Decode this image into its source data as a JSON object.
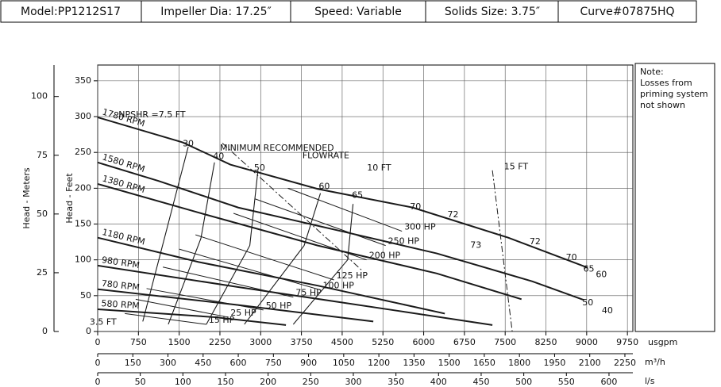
{
  "header": {
    "cells": [
      "Model:PP1212S17",
      "Impeller Dia: 17.25″",
      "Speed: Variable",
      "Solids Size: 3.75″",
      "Curve#07875HQ"
    ]
  },
  "note": {
    "lines": [
      "Note:",
      "Losses from",
      "priming system",
      "not shown"
    ]
  },
  "chart_data": {
    "type": "line",
    "color": "#1a1a1a",
    "grid": true,
    "ylabel": "Head - Feet",
    "y2label": "Head - Meters",
    "xlabel": "usgpm",
    "xlim": [
      0,
      9850
    ],
    "xticks": [
      0,
      750,
      1500,
      2250,
      3000,
      3750,
      4500,
      5250,
      6000,
      6750,
      7500,
      8250,
      9000,
      9750
    ],
    "ylim": [
      0,
      372
    ],
    "yticks": [
      0,
      50,
      100,
      150,
      200,
      250,
      300,
      350
    ],
    "y2lim": [
      0,
      113.4
    ],
    "y2ticks": [
      0,
      25,
      50,
      75,
      100
    ],
    "x2axes": [
      {
        "label": "m³/h",
        "xlim": [
          0,
          2284
        ],
        "xticks": [
          0,
          150,
          300,
          450,
          600,
          750,
          900,
          1050,
          1200,
          1350,
          1500,
          1650,
          1800,
          1950,
          2100,
          2250
        ]
      },
      {
        "label": "l/s",
        "xlim": [
          0,
          628
        ],
        "xticks": [
          0,
          50,
          100,
          150,
          200,
          250,
          300,
          350,
          400,
          450,
          500,
          550,
          600
        ]
      }
    ],
    "series": [
      {
        "name": "1780 RPM",
        "kind": "speed",
        "x": [
          0,
          1565,
          2442,
          4050,
          5800,
          7556,
          9020
        ],
        "values": [
          299,
          264,
          233,
          199,
          173,
          131,
          89
        ]
      },
      {
        "name": "1580 RPM",
        "kind": "speed",
        "x": [
          0,
          1126,
          2588,
          4488,
          6242,
          8000,
          8950
        ],
        "values": [
          236,
          210,
          173,
          140,
          109,
          70,
          44
        ]
      },
      {
        "name": "1380 RPM",
        "kind": "speed",
        "x": [
          0,
          1857,
          4050,
          6242,
          7800
        ],
        "values": [
          206,
          166,
          120,
          81,
          45
        ]
      },
      {
        "name": "1180 RPM",
        "kind": "speed",
        "x": [
          0,
          1857,
          4050,
          6389
        ],
        "values": [
          131,
          97,
          64,
          25
        ]
      },
      {
        "name": "980 RPM",
        "kind": "speed",
        "x": [
          0,
          2588,
          5512,
          7265
        ],
        "values": [
          92,
          62,
          29,
          9
        ]
      },
      {
        "name": "780 RPM",
        "kind": "speed",
        "x": [
          0,
          2588,
          5073
        ],
        "values": [
          59,
          37,
          14
        ]
      },
      {
        "name": "580 RPM",
        "kind": "speed",
        "x": [
          0,
          2149,
          3465
        ],
        "values": [
          31,
          20,
          9
        ]
      },
      {
        "name": "300 HP",
        "kind": "power",
        "x": [
          3500,
          5600
        ],
        "values": [
          200,
          140
        ]
      },
      {
        "name": "250 HP",
        "kind": "power",
        "x": [
          2900,
          5300
        ],
        "values": [
          185,
          120
        ]
      },
      {
        "name": "200 HP",
        "kind": "power",
        "x": [
          2500,
          4950
        ],
        "values": [
          165,
          100
        ]
      },
      {
        "name": "125 HP",
        "kind": "power",
        "x": [
          1800,
          4350
        ],
        "values": [
          135,
          72
        ]
      },
      {
        "name": "100 HP",
        "kind": "power",
        "x": [
          1500,
          4100
        ],
        "values": [
          115,
          58
        ]
      },
      {
        "name": "75 HP",
        "kind": "power",
        "x": [
          1200,
          3600
        ],
        "values": [
          90,
          48
        ]
      },
      {
        "name": "50 HP",
        "kind": "power",
        "x": [
          900,
          3050
        ],
        "values": [
          60,
          30
        ]
      },
      {
        "name": "25 HP",
        "kind": "power",
        "x": [
          700,
          2400
        ],
        "values": [
          45,
          20
        ]
      },
      {
        "name": "15 HP",
        "kind": "power",
        "x": [
          500,
          2000
        ],
        "values": [
          25,
          10
        ]
      },
      {
        "kind": "efficiency",
        "x": [
          830,
          1667
        ],
        "values": [
          14,
          258
        ]
      },
      {
        "kind": "efficiency",
        "x": [
          1300,
          1900,
          2150
        ],
        "values": [
          10,
          130,
          236
        ]
      },
      {
        "kind": "efficiency",
        "x": [
          2000,
          2800,
          2950
        ],
        "values": [
          10,
          120,
          225
        ]
      },
      {
        "kind": "efficiency",
        "x": [
          2700,
          3800,
          4100
        ],
        "values": [
          10,
          120,
          193
        ]
      },
      {
        "kind": "efficiency",
        "x": [
          3600,
          4600,
          4700
        ],
        "values": [
          10,
          100,
          178
        ]
      },
      {
        "kind": "npshr",
        "x": [
          2295,
          4853
        ],
        "values": [
          263,
          86
        ]
      },
      {
        "kind": "npshr",
        "x": [
          7265,
          7630
        ],
        "values": [
          225,
          0
        ]
      }
    ],
    "annotations": [
      {
        "text": "30",
        "x": 1667,
        "y": 262
      },
      {
        "text": "40",
        "x": 2225,
        "y": 244
      },
      {
        "text": "50",
        "x": 2980,
        "y": 228
      },
      {
        "text": "60",
        "x": 4170,
        "y": 202
      },
      {
        "text": "65",
        "x": 4780,
        "y": 190
      },
      {
        "text": "70",
        "x": 5850,
        "y": 174
      },
      {
        "text": "72",
        "x": 6540,
        "y": 163
      },
      {
        "text": "73",
        "x": 6960,
        "y": 120
      },
      {
        "text": "72",
        "x": 8050,
        "y": 125
      },
      {
        "text": "70",
        "x": 8720,
        "y": 103
      },
      {
        "text": "65",
        "x": 9040,
        "y": 87
      },
      {
        "text": "60",
        "x": 9270,
        "y": 79
      },
      {
        "text": "50",
        "x": 9020,
        "y": 40
      },
      {
        "text": "40",
        "x": 9380,
        "y": 29
      },
      {
        "text": "NPSHR =7.5 FT",
        "x": 1000,
        "y": 302
      },
      {
        "text": "10 FT",
        "x": 5180,
        "y": 228
      },
      {
        "text": "15 FT",
        "x": 7700,
        "y": 230
      },
      {
        "text": "3.5 FT",
        "x": 100,
        "y": 13
      },
      {
        "text": "MINIMUM RECOMMENDED",
        "x": 3300,
        "y": 256
      },
      {
        "text": "FLOWRATE",
        "x": 4200,
        "y": 245
      }
    ]
  }
}
